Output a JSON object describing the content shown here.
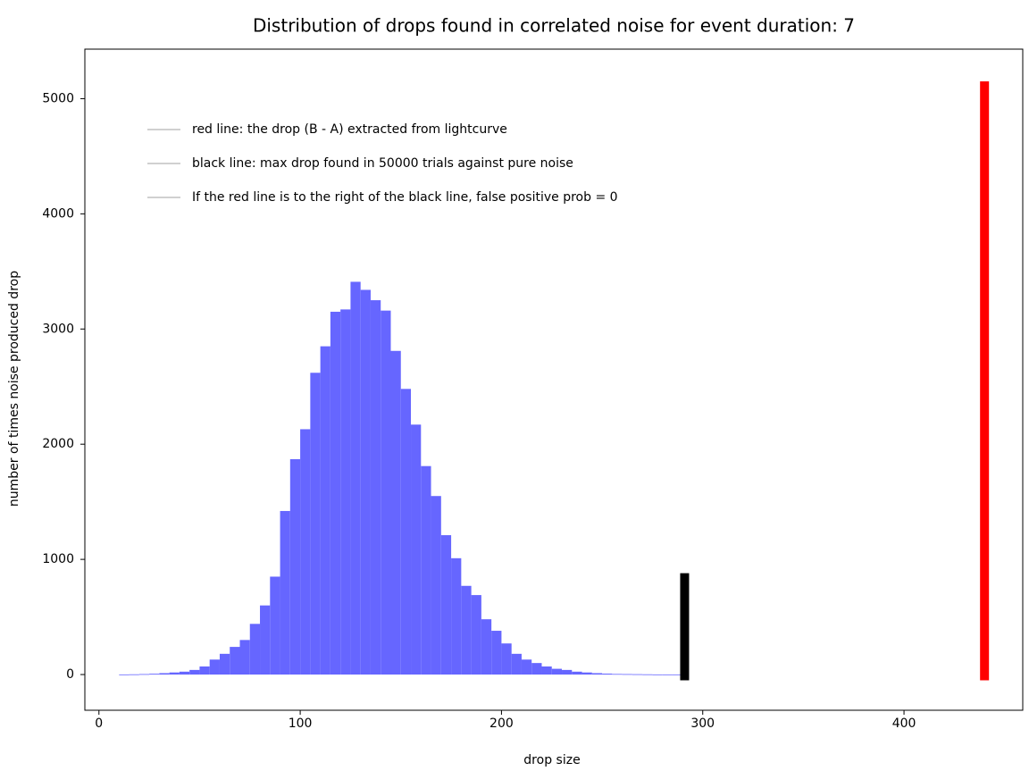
{
  "chart_data": {
    "type": "histogram",
    "title": "Distribution of drops found in correlated noise for event duration: 7",
    "x_label": "drop size",
    "y_label": "number of times noise produced drop",
    "bins": [
      10,
      15,
      20,
      25,
      30,
      35,
      40,
      45,
      50,
      55,
      60,
      65,
      70,
      75,
      80,
      85,
      90,
      95,
      100,
      105,
      110,
      115,
      120,
      125,
      130,
      135,
      140,
      145,
      150,
      155,
      160,
      165,
      170,
      175,
      180,
      185,
      190,
      195,
      200,
      205,
      210,
      215,
      220,
      225,
      230,
      235,
      240,
      245,
      250,
      255,
      260,
      265,
      270,
      275,
      280,
      285,
      290
    ],
    "values": [
      1,
      2,
      4,
      7,
      12,
      18,
      25,
      40,
      70,
      130,
      180,
      240,
      300,
      440,
      600,
      850,
      1420,
      1870,
      2130,
      2620,
      2850,
      3150,
      3170,
      3410,
      3340,
      3250,
      3160,
      2810,
      2480,
      2170,
      1810,
      1550,
      1210,
      1010,
      770,
      690,
      480,
      380,
      270,
      180,
      130,
      100,
      70,
      50,
      40,
      25,
      18,
      12,
      8,
      5,
      4,
      3,
      2,
      1,
      1,
      1
    ],
    "color": "#6666ff",
    "vlines": [
      {
        "x": 291,
        "ymin": -50,
        "ymax": 880,
        "color": "#000000"
      },
      {
        "x": 440,
        "ymin": -50,
        "ymax": 5150,
        "color": "#ff0000"
      }
    ],
    "legend": [
      "red line: the drop (B - A) extracted from lightcurve",
      "black line: max drop found in 50000 trials against pure noise",
      "If the red line is to the right of the black line, false positive prob = 0"
    ],
    "legend_color": "#d0d0d0",
    "xlim": [
      -7,
      459
    ],
    "ylim": [
      -310,
      5430
    ],
    "xticks": [
      0,
      100,
      200,
      300,
      400
    ],
    "yticks": [
      0,
      1000,
      2000,
      3000,
      4000,
      5000
    ]
  }
}
